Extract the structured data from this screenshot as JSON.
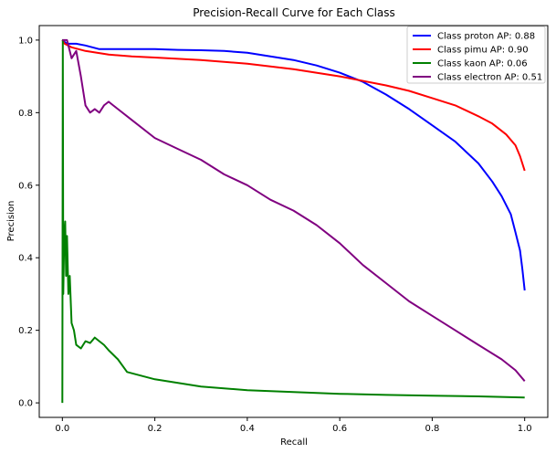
{
  "chart_data": {
    "type": "line",
    "title": "Precision-Recall Curve for Each Class",
    "xlabel": "Recall",
    "ylabel": "Precision",
    "xlim": [
      -0.05,
      1.05
    ],
    "ylim": [
      -0.04,
      1.04
    ],
    "xticks": [
      0.0,
      0.2,
      0.4,
      0.6,
      0.8,
      1.0
    ],
    "xtick_labels": [
      "0.0",
      "0.2",
      "0.4",
      "0.6",
      "0.8",
      "1.0"
    ],
    "yticks": [
      0.0,
      0.2,
      0.4,
      0.6,
      0.8,
      1.0
    ],
    "ytick_labels": [
      "0.0",
      "0.2",
      "0.4",
      "0.6",
      "0.8",
      "1.0"
    ],
    "grid": false,
    "legend_position": "top-right",
    "series": [
      {
        "name": "Class proton AP: 0.88",
        "color": "#0000ff",
        "x": [
          0.0,
          0.005,
          0.01,
          0.03,
          0.05,
          0.08,
          0.1,
          0.15,
          0.2,
          0.25,
          0.3,
          0.35,
          0.4,
          0.45,
          0.5,
          0.55,
          0.6,
          0.65,
          0.7,
          0.75,
          0.8,
          0.85,
          0.9,
          0.93,
          0.95,
          0.97,
          0.98,
          0.99,
          0.995,
          1.0
        ],
        "y": [
          1.0,
          0.995,
          0.99,
          0.99,
          0.985,
          0.975,
          0.975,
          0.975,
          0.975,
          0.973,
          0.972,
          0.97,
          0.965,
          0.955,
          0.945,
          0.93,
          0.91,
          0.885,
          0.85,
          0.81,
          0.765,
          0.72,
          0.66,
          0.61,
          0.57,
          0.52,
          0.47,
          0.42,
          0.37,
          0.31
        ]
      },
      {
        "name": "Class pimu AP: 0.90",
        "color": "#ff0000",
        "x": [
          0.0,
          0.005,
          0.02,
          0.05,
          0.1,
          0.15,
          0.2,
          0.3,
          0.4,
          0.5,
          0.6,
          0.7,
          0.75,
          0.8,
          0.85,
          0.9,
          0.93,
          0.96,
          0.98,
          0.99,
          1.0
        ],
        "y": [
          1.0,
          0.99,
          0.98,
          0.97,
          0.96,
          0.955,
          0.952,
          0.945,
          0.935,
          0.92,
          0.9,
          0.875,
          0.86,
          0.84,
          0.82,
          0.79,
          0.77,
          0.74,
          0.71,
          0.68,
          0.64
        ]
      },
      {
        "name": "Class kaon AP: 0.06",
        "color": "#008000",
        "x": [
          0.0,
          0.001,
          0.002,
          0.004,
          0.006,
          0.008,
          0.01,
          0.013,
          0.016,
          0.02,
          0.025,
          0.03,
          0.04,
          0.05,
          0.06,
          0.07,
          0.08,
          0.09,
          0.1,
          0.12,
          0.14,
          0.17,
          0.2,
          0.25,
          0.3,
          0.4,
          0.5,
          0.6,
          0.7,
          0.8,
          0.9,
          1.0
        ],
        "y": [
          0.0,
          1.0,
          0.3,
          0.45,
          0.5,
          0.35,
          0.46,
          0.3,
          0.35,
          0.22,
          0.2,
          0.16,
          0.15,
          0.17,
          0.165,
          0.18,
          0.17,
          0.16,
          0.145,
          0.12,
          0.085,
          0.075,
          0.065,
          0.055,
          0.045,
          0.035,
          0.03,
          0.025,
          0.022,
          0.02,
          0.018,
          0.015
        ]
      },
      {
        "name": "Class electron AP: 0.51",
        "color": "#800080",
        "x": [
          0.0,
          0.005,
          0.01,
          0.02,
          0.03,
          0.04,
          0.05,
          0.06,
          0.07,
          0.08,
          0.09,
          0.1,
          0.11,
          0.12,
          0.15,
          0.2,
          0.25,
          0.3,
          0.35,
          0.4,
          0.45,
          0.5,
          0.55,
          0.6,
          0.65,
          0.7,
          0.75,
          0.8,
          0.85,
          0.9,
          0.95,
          0.98,
          1.0
        ],
        "y": [
          1.0,
          1.0,
          1.0,
          0.95,
          0.97,
          0.9,
          0.82,
          0.8,
          0.81,
          0.8,
          0.82,
          0.83,
          0.82,
          0.81,
          0.78,
          0.73,
          0.7,
          0.67,
          0.63,
          0.6,
          0.56,
          0.53,
          0.49,
          0.44,
          0.38,
          0.33,
          0.28,
          0.24,
          0.2,
          0.16,
          0.12,
          0.09,
          0.06
        ]
      }
    ]
  }
}
